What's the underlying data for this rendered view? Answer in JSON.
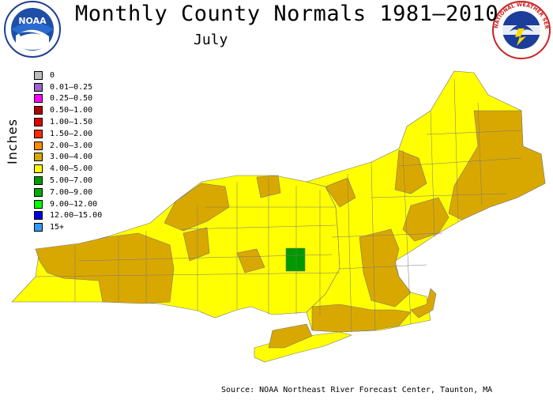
{
  "header": {
    "title": "Monthly County Normals 1981–2010",
    "month": "July"
  },
  "logos": {
    "noaa_text": "NOAA",
    "nws_text": "NATIONAL WEATHER SERVICE"
  },
  "legend": {
    "axis_label": "Inches",
    "items": [
      {
        "label": "0",
        "color": "#bdbdbd"
      },
      {
        "label": "0.01–0.25",
        "color": "#9966cc"
      },
      {
        "label": "0.25–0.50",
        "color": "#ff00ff"
      },
      {
        "label": "0.50–1.00",
        "color": "#b00000"
      },
      {
        "label": "1.00–1.50",
        "color": "#dd0000"
      },
      {
        "label": "1.50–2.00",
        "color": "#ff2a00"
      },
      {
        "label": "2.00–3.00",
        "color": "#ff8c00"
      },
      {
        "label": "3.00–4.00",
        "color": "#d9a800"
      },
      {
        "label": "4.00–5.00",
        "color": "#ffff00"
      },
      {
        "label": "5.00–7.00",
        "color": "#009900"
      },
      {
        "label": "7.00–9.00",
        "color": "#00aa00"
      },
      {
        "label": "9.00–12.00",
        "color": "#00ff00"
      },
      {
        "label": "12.00–15.00",
        "color": "#0000dd"
      },
      {
        "label": "15+",
        "color": "#3399ff"
      }
    ]
  },
  "map": {
    "region": "Northeast US",
    "colors": {
      "class_3_4": "#d9a800",
      "class_4_5": "#ffff00",
      "class_5_7": "#009900"
    }
  },
  "footer": {
    "source": "Source: NOAA Northeast River Forecast Center, Taunton, MA"
  }
}
